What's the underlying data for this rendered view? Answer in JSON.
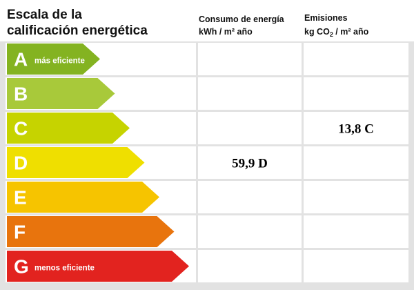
{
  "header": {
    "title": [
      "Escala de la",
      "calificación energética"
    ]
  },
  "columns": [
    {
      "title": "Consumo de energía",
      "unit": [
        "kWh / m² año"
      ]
    },
    {
      "title": "Emisiones",
      "unit": [
        "kg CO",
        "2",
        " / m² año"
      ]
    }
  ],
  "rows": [
    {
      "letter": "A",
      "note": "más eficiente",
      "color": "#84b321"
    },
    {
      "letter": "B",
      "color": "#a8c93a"
    },
    {
      "letter": "C",
      "color": "#c6d300",
      "emissions": "13,8 C"
    },
    {
      "letter": "D",
      "color": "#efdf00",
      "consumption": "59,9 D"
    },
    {
      "letter": "E",
      "color": "#f6c400"
    },
    {
      "letter": "F",
      "color": "#e8740d"
    },
    {
      "letter": "G",
      "note": "menos eficiente",
      "color": "#e2231f"
    }
  ]
}
